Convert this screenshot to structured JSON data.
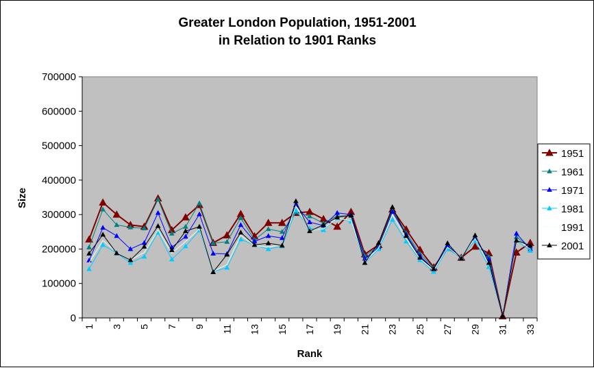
{
  "chart_data": {
    "type": "line",
    "title": "Greater London Population, 1951-2001",
    "subtitle": "in Relation to 1901 Ranks",
    "xlabel": "Rank",
    "ylabel": "Size",
    "ylim": [
      0,
      700000
    ],
    "yticks": [
      "0",
      "100000",
      "200000",
      "300000",
      "400000",
      "500000",
      "600000",
      "700000"
    ],
    "categories": [
      "1",
      "2",
      "3",
      "4",
      "5",
      "6",
      "7",
      "8",
      "9",
      "10",
      "11",
      "12",
      "13",
      "14",
      "15",
      "16",
      "17",
      "18",
      "19",
      "20",
      "21",
      "22",
      "23",
      "24",
      "25",
      "26",
      "27",
      "28",
      "29",
      "30",
      "31",
      "32",
      "33"
    ],
    "xtick_labels": [
      "1",
      "3",
      "5",
      "7",
      "9",
      "11",
      "13",
      "15",
      "17",
      "19",
      "21",
      "23",
      "25",
      "27",
      "29",
      "31",
      "33"
    ],
    "grid": false,
    "legend": "right",
    "plot_bg": "#C0C0C0",
    "series": [
      {
        "name": "1951",
        "color": "#800000",
        "marker": "triangle",
        "values": [
          228000,
          335000,
          300000,
          270000,
          265000,
          347000,
          255000,
          292000,
          328000,
          218000,
          240000,
          302000,
          237000,
          276000,
          276000,
          305000,
          308000,
          287000,
          265000,
          308000,
          185000,
          212000,
          315000,
          257000,
          198000,
          147000,
          203000,
          175000,
          207000,
          188000,
          5000,
          190000,
          218000
        ]
      },
      {
        "name": "1961",
        "color": "#008080",
        "marker": "triangle",
        "values": [
          205000,
          315000,
          270000,
          263000,
          260000,
          344000,
          245000,
          265000,
          333000,
          217000,
          221000,
          290000,
          227000,
          258000,
          250000,
          307000,
          295000,
          275000,
          296000,
          296000,
          180000,
          207000,
          312000,
          247000,
          187000,
          145000,
          207000,
          175000,
          225000,
          178000,
          5000,
          235000,
          205000
        ]
      },
      {
        "name": "1971",
        "color": "#0000FF",
        "marker": "triangle",
        "values": [
          167000,
          262000,
          238000,
          200000,
          218000,
          305000,
          205000,
          236000,
          301000,
          187000,
          186000,
          270000,
          222000,
          238000,
          232000,
          328000,
          278000,
          268000,
          305000,
          300000,
          172000,
          205000,
          308000,
          242000,
          180000,
          141000,
          210000,
          175000,
          230000,
          170000,
          5000,
          245000,
          200000
        ]
      },
      {
        "name": "1981",
        "color": "#00CCFF",
        "marker": "triangle",
        "values": [
          142000,
          212000,
          188000,
          160000,
          178000,
          248000,
          170000,
          208000,
          254000,
          134000,
          146000,
          228000,
          212000,
          200000,
          208000,
          312000,
          260000,
          255000,
          290000,
          280000,
          160000,
          200000,
          285000,
          222000,
          168000,
          134000,
          200000,
          175000,
          225000,
          148000,
          5000,
          225000,
          195000
        ]
      },
      {
        "name": "1991",
        "color": "#E0FFFF",
        "marker": "none",
        "values": [
          160000,
          225000,
          190000,
          168000,
          190000,
          255000,
          188000,
          222000,
          258000,
          135000,
          155000,
          240000,
          210000,
          206000,
          212000,
          325000,
          255000,
          258000,
          290000,
          282000,
          163000,
          203000,
          300000,
          230000,
          172000,
          138000,
          205000,
          175000,
          230000,
          155000,
          5000,
          228000,
          200000
        ]
      },
      {
        "name": "2001",
        "color": "#000000",
        "marker": "triangle",
        "values": [
          187000,
          242000,
          188000,
          168000,
          207000,
          267000,
          197000,
          252000,
          265000,
          133000,
          184000,
          248000,
          212000,
          217000,
          210000,
          339000,
          252000,
          270000,
          292000,
          298000,
          160000,
          218000,
          322000,
          238000,
          175000,
          142000,
          217000,
          172000,
          240000,
          160000,
          5000,
          225000,
          210000
        ]
      }
    ]
  }
}
